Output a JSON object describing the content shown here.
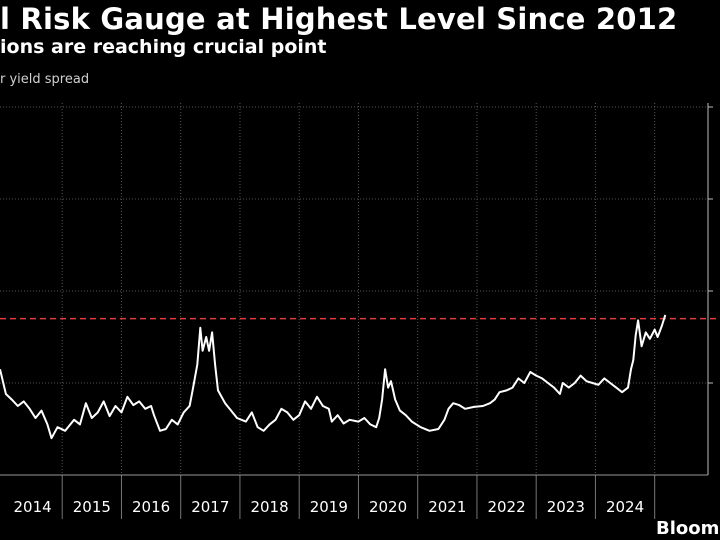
{
  "header": {
    "title": "l Risk Gauge at Highest Level Since 2012",
    "subtitle": "ions are reaching crucial point",
    "ylabel": "r yield spread"
  },
  "footer": {
    "source": "Bloomberg"
  },
  "colors": {
    "background": "#000000",
    "line": "#ffffff",
    "grid": "#555555",
    "threshold": "#e03a3a"
  },
  "chart_data": {
    "type": "line",
    "title": "",
    "xlabel": "",
    "ylabel": "r yield spread",
    "x_ticks": [
      "2014",
      "2015",
      "2016",
      "2017",
      "2018",
      "2019",
      "2020",
      "2021",
      "2022",
      "2023",
      "2024"
    ],
    "xlim": [
      2013.45,
      2025.4
    ],
    "ylim": [
      0,
      4
    ],
    "grid": "dotted",
    "threshold": 1.7,
    "series": [
      {
        "values": [
          [
            2013.45,
            1.15
          ],
          [
            2013.55,
            0.88
          ],
          [
            2013.65,
            0.82
          ],
          [
            2013.75,
            0.75
          ],
          [
            2013.85,
            0.8
          ],
          [
            2013.95,
            0.72
          ],
          [
            2014.05,
            0.62
          ],
          [
            2014.15,
            0.7
          ],
          [
            2014.25,
            0.55
          ],
          [
            2014.32,
            0.4
          ],
          [
            2014.42,
            0.52
          ],
          [
            2014.55,
            0.48
          ],
          [
            2014.7,
            0.6
          ],
          [
            2014.8,
            0.55
          ],
          [
            2014.9,
            0.78
          ],
          [
            2015.0,
            0.62
          ],
          [
            2015.1,
            0.68
          ],
          [
            2015.2,
            0.8
          ],
          [
            2015.3,
            0.64
          ],
          [
            2015.4,
            0.75
          ],
          [
            2015.5,
            0.68
          ],
          [
            2015.6,
            0.85
          ],
          [
            2015.7,
            0.76
          ],
          [
            2015.8,
            0.8
          ],
          [
            2015.9,
            0.72
          ],
          [
            2016.0,
            0.75
          ],
          [
            2016.05,
            0.65
          ],
          [
            2016.15,
            0.48
          ],
          [
            2016.25,
            0.5
          ],
          [
            2016.35,
            0.6
          ],
          [
            2016.45,
            0.55
          ],
          [
            2016.55,
            0.68
          ],
          [
            2016.65,
            0.75
          ],
          [
            2016.7,
            0.92
          ],
          [
            2016.78,
            1.2
          ],
          [
            2016.83,
            1.6
          ],
          [
            2016.87,
            1.35
          ],
          [
            2016.93,
            1.5
          ],
          [
            2016.98,
            1.35
          ],
          [
            2017.03,
            1.55
          ],
          [
            2017.08,
            1.2
          ],
          [
            2017.13,
            0.92
          ],
          [
            2017.25,
            0.78
          ],
          [
            2017.35,
            0.7
          ],
          [
            2017.45,
            0.62
          ],
          [
            2017.6,
            0.58
          ],
          [
            2017.7,
            0.68
          ],
          [
            2017.8,
            0.52
          ],
          [
            2017.9,
            0.48
          ],
          [
            2018.0,
            0.55
          ],
          [
            2018.1,
            0.6
          ],
          [
            2018.2,
            0.72
          ],
          [
            2018.3,
            0.68
          ],
          [
            2018.4,
            0.6
          ],
          [
            2018.5,
            0.65
          ],
          [
            2018.6,
            0.8
          ],
          [
            2018.7,
            0.72
          ],
          [
            2018.8,
            0.85
          ],
          [
            2018.9,
            0.75
          ],
          [
            2019.0,
            0.72
          ],
          [
            2019.05,
            0.58
          ],
          [
            2019.15,
            0.65
          ],
          [
            2019.25,
            0.56
          ],
          [
            2019.35,
            0.6
          ],
          [
            2019.5,
            0.58
          ],
          [
            2019.6,
            0.62
          ],
          [
            2019.7,
            0.55
          ],
          [
            2019.8,
            0.52
          ],
          [
            2019.85,
            0.62
          ],
          [
            2019.9,
            0.82
          ],
          [
            2019.95,
            1.15
          ],
          [
            2020.0,
            0.95
          ],
          [
            2020.05,
            1.02
          ],
          [
            2020.12,
            0.82
          ],
          [
            2020.2,
            0.7
          ],
          [
            2020.3,
            0.65
          ],
          [
            2020.4,
            0.58
          ],
          [
            2020.55,
            0.52
          ],
          [
            2020.7,
            0.48
          ],
          [
            2020.85,
            0.5
          ],
          [
            2020.95,
            0.6
          ],
          [
            2021.02,
            0.72
          ],
          [
            2021.1,
            0.78
          ],
          [
            2021.2,
            0.76
          ],
          [
            2021.3,
            0.72
          ],
          [
            2021.45,
            0.74
          ],
          [
            2021.6,
            0.75
          ],
          [
            2021.72,
            0.78
          ],
          [
            2021.8,
            0.82
          ],
          [
            2021.88,
            0.9
          ],
          [
            2022.0,
            0.92
          ],
          [
            2022.1,
            0.95
          ],
          [
            2022.2,
            1.05
          ],
          [
            2022.3,
            1.0
          ],
          [
            2022.4,
            1.12
          ],
          [
            2022.5,
            1.08
          ],
          [
            2022.6,
            1.05
          ],
          [
            2022.7,
            1.0
          ],
          [
            2022.8,
            0.95
          ],
          [
            2022.9,
            0.88
          ],
          [
            2022.95,
            1.0
          ],
          [
            2023.05,
            0.95
          ],
          [
            2023.15,
            1.0
          ],
          [
            2023.25,
            1.08
          ],
          [
            2023.35,
            1.02
          ],
          [
            2023.45,
            1.0
          ],
          [
            2023.55,
            0.98
          ],
          [
            2023.65,
            1.05
          ],
          [
            2023.75,
            1.0
          ],
          [
            2023.85,
            0.95
          ],
          [
            2023.95,
            0.9
          ],
          [
            2024.05,
            0.95
          ],
          [
            2024.1,
            1.15
          ],
          [
            2024.14,
            1.25
          ],
          [
            2024.18,
            1.52
          ],
          [
            2024.22,
            1.68
          ],
          [
            2024.28,
            1.4
          ],
          [
            2024.35,
            1.55
          ],
          [
            2024.42,
            1.48
          ],
          [
            2024.5,
            1.58
          ],
          [
            2024.55,
            1.5
          ],
          [
            2024.62,
            1.62
          ],
          [
            2024.68,
            1.74
          ]
        ]
      }
    ]
  }
}
